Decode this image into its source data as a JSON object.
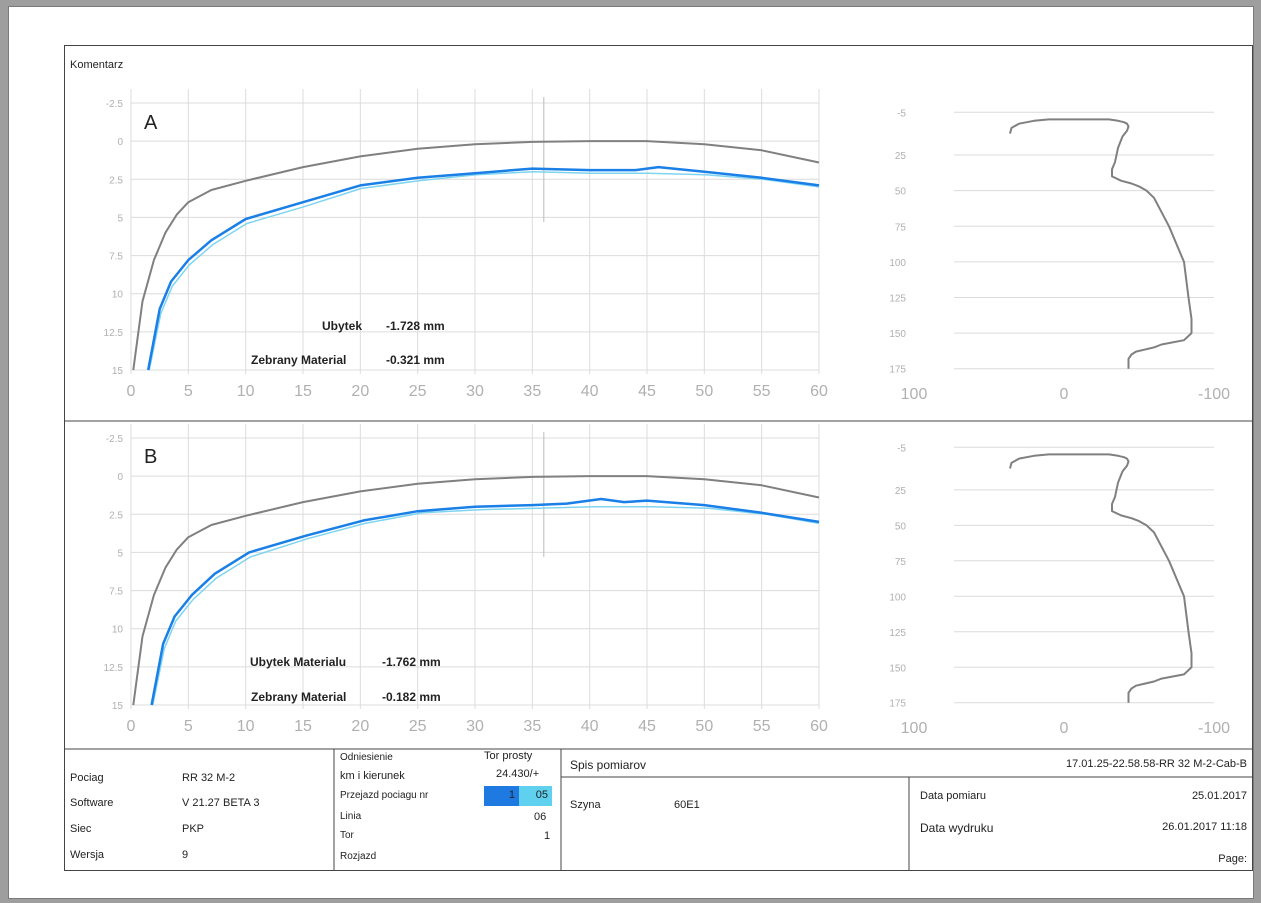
{
  "comment_label": "Komentarz",
  "colors": {
    "reference": "#808080",
    "measured": "#1a7fe6",
    "measured_light": "#7fd4f0",
    "grid": "#dcdcdc",
    "tick": "#b0b0b0"
  },
  "chart_data": [
    {
      "type": "line",
      "panel": "A",
      "xlim": [
        0,
        60
      ],
      "ylim": [
        15,
        -2.5
      ],
      "x_ticks": [
        "0",
        "5",
        "10",
        "15",
        "20",
        "25",
        "30",
        "35",
        "40",
        "45",
        "50",
        "55",
        "60"
      ],
      "y_ticks": [
        "-2.5",
        "0",
        "2.5",
        "5",
        "7.5",
        "10",
        "12.5",
        "15"
      ],
      "series": [
        {
          "x": [
            0.2,
            1,
            2,
            3,
            4,
            5,
            7,
            10,
            15,
            20,
            25,
            30,
            35,
            40,
            45,
            50,
            55,
            60
          ],
          "y": [
            15,
            10.5,
            7.8,
            6.0,
            4.8,
            4.0,
            3.2,
            2.6,
            1.7,
            1.0,
            0.5,
            0.2,
            0.05,
            0.0,
            0.0,
            0.2,
            0.6,
            1.4
          ]
        },
        {
          "x": [
            1.5,
            2.5,
            3.5,
            5,
            7,
            10,
            15,
            20,
            25,
            30,
            35,
            40,
            44,
            46,
            50,
            55,
            60
          ],
          "y": [
            15,
            11.0,
            9.2,
            7.8,
            6.5,
            5.1,
            4.0,
            2.9,
            2.4,
            2.1,
            1.8,
            1.9,
            1.9,
            1.7,
            2.0,
            2.4,
            2.9
          ]
        },
        {
          "x": [
            1.6,
            2.6,
            3.6,
            5.1,
            7.1,
            10.1,
            15.1,
            20.1,
            25.1,
            30.1,
            35.1,
            40.1,
            45.1,
            50.1,
            55.1,
            60
          ],
          "y": [
            15,
            11.3,
            9.5,
            8.1,
            6.8,
            5.4,
            4.3,
            3.1,
            2.6,
            2.2,
            2.0,
            2.1,
            2.1,
            2.2,
            2.5,
            3.0
          ]
        }
      ],
      "annotations": [
        {
          "label": "Ubytek",
          "value": "-1.728 mm"
        },
        {
          "label": "Zebrany Material",
          "value": "-0.321 mm"
        }
      ]
    },
    {
      "type": "line",
      "panel": "B",
      "xlim": [
        0,
        60
      ],
      "ylim": [
        15,
        -2.5
      ],
      "x_ticks": [
        "0",
        "5",
        "10",
        "15",
        "20",
        "25",
        "30",
        "35",
        "40",
        "45",
        "50",
        "55",
        "60"
      ],
      "y_ticks": [
        "-2.5",
        "0",
        "2.5",
        "5",
        "7.5",
        "10",
        "12.5",
        "15"
      ],
      "series": [
        {
          "x": [
            0.2,
            1,
            2,
            3,
            4,
            5,
            7,
            10,
            15,
            20,
            25,
            30,
            35,
            40,
            45,
            50,
            55,
            60
          ],
          "y": [
            15,
            10.5,
            7.8,
            6.0,
            4.8,
            4.0,
            3.2,
            2.6,
            1.7,
            1.0,
            0.5,
            0.2,
            0.05,
            0.0,
            0.0,
            0.2,
            0.6,
            1.4
          ]
        },
        {
          "x": [
            1.8,
            2.8,
            3.8,
            5.3,
            7.3,
            10.3,
            15.3,
            20.3,
            25,
            30,
            35,
            38,
            41,
            43,
            45,
            50,
            55,
            60
          ],
          "y": [
            15,
            11.0,
            9.2,
            7.8,
            6.4,
            5.0,
            3.9,
            2.9,
            2.3,
            2.0,
            1.9,
            1.8,
            1.5,
            1.7,
            1.6,
            1.9,
            2.4,
            3.0
          ]
        },
        {
          "x": [
            1.9,
            2.9,
            3.9,
            5.4,
            7.4,
            10.4,
            15.4,
            20.4,
            25.4,
            30.4,
            35.4,
            40.4,
            45.4,
            50.4,
            55.4,
            60
          ],
          "y": [
            15,
            11.3,
            9.5,
            8.1,
            6.7,
            5.3,
            4.1,
            3.1,
            2.4,
            2.2,
            2.1,
            2.0,
            2.0,
            2.1,
            2.5,
            3.1
          ]
        }
      ],
      "annotations": [
        {
          "label": "Ubytek Materialu",
          "value": "-1.762 mm"
        },
        {
          "label": "Zebrany Material",
          "value": "-0.182 mm"
        }
      ]
    },
    {
      "type": "line",
      "panel": "A-profile",
      "xlim": [
        100,
        -100
      ],
      "ylim": [
        178,
        -8
      ],
      "x_ticks": [
        "100",
        "0",
        "-100"
      ],
      "y_ticks": [
        "-5",
        "25",
        "50",
        "75",
        "100",
        "125",
        "150",
        "175"
      ],
      "series": [
        {
          "x": [
            -43,
            -43,
            -45,
            -48,
            -60,
            -65,
            -80,
            -85,
            -85,
            -83,
            -80,
            -70,
            -60,
            -55,
            -50,
            -45,
            -38,
            -32,
            -32,
            -34,
            -36,
            -39,
            -42,
            -43,
            -42,
            -40,
            -36,
            -30,
            -25,
            -20,
            -10,
            0,
            10,
            20,
            30,
            35,
            36
          ],
          "y": [
            175,
            168,
            165,
            163,
            160,
            158,
            155,
            150,
            140,
            125,
            100,
            75,
            55,
            50,
            47,
            45,
            43,
            40,
            35,
            30,
            20,
            12,
            8,
            5,
            3,
            2,
            1,
            0,
            0,
            0,
            0,
            0,
            0,
            1,
            3,
            6,
            10
          ]
        }
      ]
    },
    {
      "type": "line",
      "panel": "B-profile",
      "xlim": [
        100,
        -100
      ],
      "ylim": [
        178,
        -8
      ],
      "x_ticks": [
        "100",
        "0",
        "-100"
      ],
      "y_ticks": [
        "-5",
        "25",
        "50",
        "75",
        "100",
        "125",
        "150",
        "175"
      ],
      "series": [
        {
          "x": [
            -43,
            -43,
            -45,
            -48,
            -60,
            -65,
            -80,
            -85,
            -85,
            -83,
            -80,
            -70,
            -60,
            -55,
            -50,
            -45,
            -38,
            -32,
            -32,
            -34,
            -36,
            -39,
            -42,
            -43,
            -42,
            -40,
            -36,
            -30,
            -25,
            -20,
            -10,
            0,
            10,
            20,
            30,
            35,
            36
          ],
          "y": [
            175,
            168,
            165,
            163,
            160,
            158,
            155,
            150,
            140,
            125,
            100,
            75,
            55,
            50,
            47,
            45,
            43,
            40,
            35,
            30,
            20,
            12,
            8,
            5,
            3,
            2,
            1,
            0,
            0,
            0,
            0,
            0,
            0,
            1,
            3,
            6,
            10
          ]
        }
      ]
    }
  ],
  "info": {
    "left": [
      {
        "label": "Pociag",
        "value": "RR 32 M-2"
      },
      {
        "label": "Software",
        "value": "V 21.27 BETA 3"
      },
      {
        "label": "Siec",
        "value": "PKP"
      },
      {
        "label": "Wersja",
        "value": "9"
      }
    ],
    "middle": {
      "odniesienie_label": "Odniesienie",
      "odniesienie_value": "Tor prosty",
      "km_label": "km i kierunek",
      "km_value": "24.430/+",
      "przejazd_label": "Przejazd pociagu nr",
      "przejazd_a": "1",
      "przejazd_b": "05",
      "linia_label": "Linia",
      "linia_value": "06",
      "tor_label": "Tor",
      "tor_value": "1",
      "rozjazd_label": "Rozjazd"
    },
    "right": {
      "spis_label": "Spis pomiarov",
      "file_id": "17.01.25-22.58.58-RR 32 M-2-Cab-B",
      "szyna_label": "Szyna",
      "szyna_value": "60E1",
      "data_pomiaru_label": "Data pomiaru",
      "data_pomiaru_value": "25.01.2017",
      "data_wydruku_label": "Data wydruku",
      "data_wydruku_value": "26.01.2017 11:18",
      "page_label": "Page:"
    }
  }
}
